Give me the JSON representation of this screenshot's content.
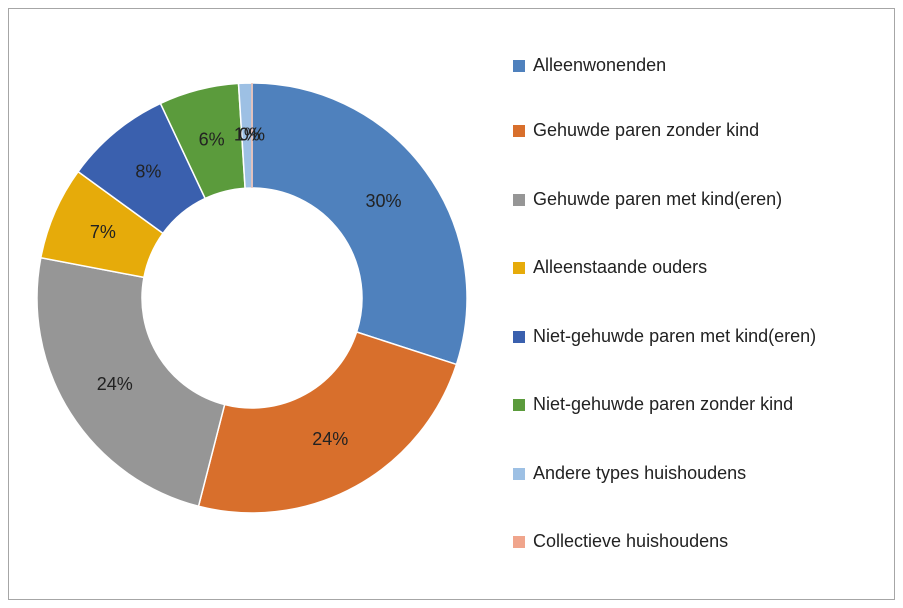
{
  "chart_data": {
    "type": "donut",
    "categories": [
      "Alleenwonenden",
      "Gehuwde paren zonder kind",
      "Gehuwde paren met kind(eren)",
      "Alleenstaande ouders",
      "Niet-gehuwde paren met kind(eren)",
      "Niet-gehuwde paren zonder kind",
      "Andere types  huishoudens",
      "Collectieve huishoudens"
    ],
    "values": [
      30,
      24,
      24,
      7,
      8,
      6,
      1,
      0
    ],
    "value_labels": [
      "30%",
      "24%",
      "24%",
      "7%",
      "8%",
      "6%",
      "1%",
      "0%"
    ],
    "colors": [
      "#4f81bd",
      "#d86f2c",
      "#969696",
      "#e6ab0a",
      "#3a60ae",
      "#5b9b3c",
      "#9dc0e4",
      "#f0a58c"
    ],
    "legend": "right"
  }
}
